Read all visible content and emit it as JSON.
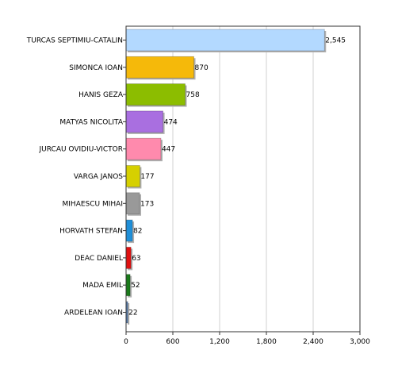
{
  "chart_data": {
    "type": "bar",
    "orientation": "horizontal",
    "categories": [
      "TURCAS SEPTIMIU-CATALIN",
      "SIMONCA IOAN",
      "HANIS GEZA",
      "MATYAS NICOLITA",
      "JURCAU OVIDIU-VICTOR",
      "VARGA JANOS",
      "MIHAESCU MIHAI",
      "HORVATH STEFAN",
      "DEAC DANIEL",
      "MADA EMIL",
      "ARDELEAN IOAN"
    ],
    "values": [
      2545,
      870,
      758,
      474,
      447,
      177,
      173,
      82,
      63,
      52,
      22
    ],
    "value_labels": [
      "2,545",
      "870",
      "758",
      "474",
      "447",
      "177",
      "173",
      "82",
      "63",
      "52",
      "22"
    ],
    "colors": [
      "#b3d9ff",
      "#f5b90a",
      "#8cbd00",
      "#a96fe0",
      "#ff8aad",
      "#d6d000",
      "#999999",
      "#1f8fd8",
      "#e01010",
      "#1a7a1a",
      "#5a7fb0"
    ],
    "xlim": [
      0,
      3000
    ],
    "xticks": [
      0,
      600,
      1200,
      1800,
      2400,
      3000
    ],
    "xtick_labels": [
      "0",
      "600",
      "1,200",
      "1,800",
      "2,400",
      "3,000"
    ],
    "grid": true,
    "title": "",
    "xlabel": "",
    "ylabel": ""
  }
}
